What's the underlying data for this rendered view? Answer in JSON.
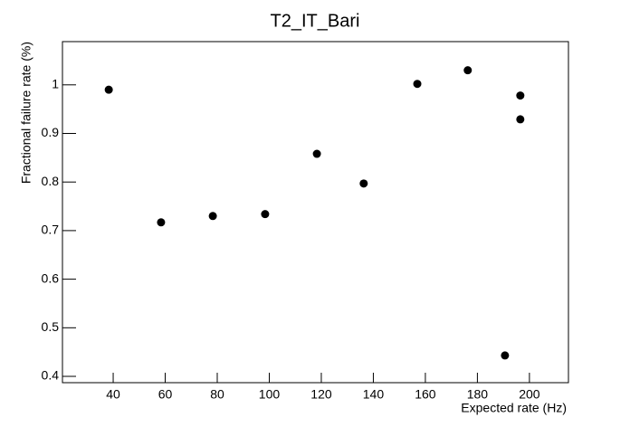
{
  "chart_data": {
    "type": "scatter",
    "title": "T2_IT_Bari",
    "x_label": "Expected rate (Hz)",
    "y_label": "Fractional failure rate (%)",
    "x": [
      38.3,
      58.4,
      78.3,
      98.4,
      118.3,
      136.3,
      156.9,
      176.3,
      196.5,
      196.5,
      190.6
    ],
    "values": [
      0.99,
      0.717,
      0.73,
      0.734,
      0.858,
      0.797,
      1.002,
      1.03,
      0.978,
      0.929,
      0.443
    ],
    "color": "#000000",
    "xlim": [
      20.5,
      215
    ],
    "xticks": [
      40,
      60,
      80,
      100,
      120,
      140,
      160,
      180,
      200
    ],
    "ylim": [
      0.387,
      1.089
    ],
    "yticks": [
      0.4,
      0.5,
      0.6,
      0.7,
      0.8,
      0.9,
      1
    ]
  }
}
